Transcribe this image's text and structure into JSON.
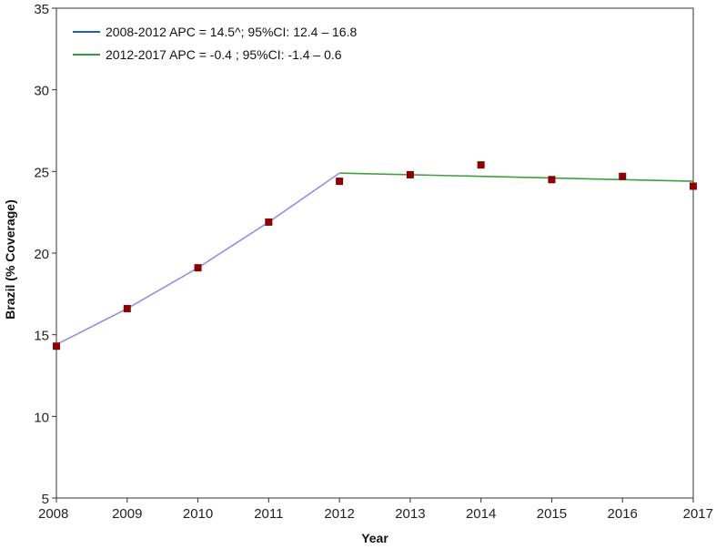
{
  "chart_data": {
    "type": "scatter",
    "title": "",
    "xlabel": "Year",
    "ylabel": "Brazil (% Coverage)",
    "xlim": [
      2008,
      2017
    ],
    "ylim": [
      5,
      35
    ],
    "x_ticks": [
      "2008",
      "2009",
      "2010",
      "2011",
      "2012",
      "2013",
      "2014",
      "2015",
      "2016",
      "2017"
    ],
    "y_ticks": [
      "5",
      "10",
      "15",
      "20",
      "25",
      "30",
      "35"
    ],
    "grid": false,
    "legend_position": "top-left",
    "observed": {
      "color": "#8b0000",
      "points": [
        {
          "x": 2008,
          "y": 14.3
        },
        {
          "x": 2009,
          "y": 16.6
        },
        {
          "x": 2010,
          "y": 19.1
        },
        {
          "x": 2011,
          "y": 21.9
        },
        {
          "x": 2012,
          "y": 24.4
        },
        {
          "x": 2013,
          "y": 24.8
        },
        {
          "x": 2014,
          "y": 25.4
        },
        {
          "x": 2015,
          "y": 24.5
        },
        {
          "x": 2016,
          "y": 24.7
        },
        {
          "x": 2017,
          "y": 24.1
        }
      ]
    },
    "series": [
      {
        "legend": "2008-2012 APC = 14.5^; 95%CI: 12.4 – 16.8",
        "color": "#8f8ff0",
        "legend_color": "#1f5fa8",
        "points": [
          {
            "x": 2008,
            "y": 14.4
          },
          {
            "x": 2009,
            "y": 16.6
          },
          {
            "x": 2010,
            "y": 19.1
          },
          {
            "x": 2011,
            "y": 21.9
          },
          {
            "x": 2012,
            "y": 24.9
          }
        ]
      },
      {
        "legend": "2012-2017 APC = -0.4   ; 95%CI: -1.4 – 0.6",
        "color": "#3f9f3f",
        "legend_color": "#2e9e3e",
        "points": [
          {
            "x": 2012,
            "y": 24.9
          },
          {
            "x": 2017,
            "y": 24.4
          }
        ]
      }
    ]
  }
}
